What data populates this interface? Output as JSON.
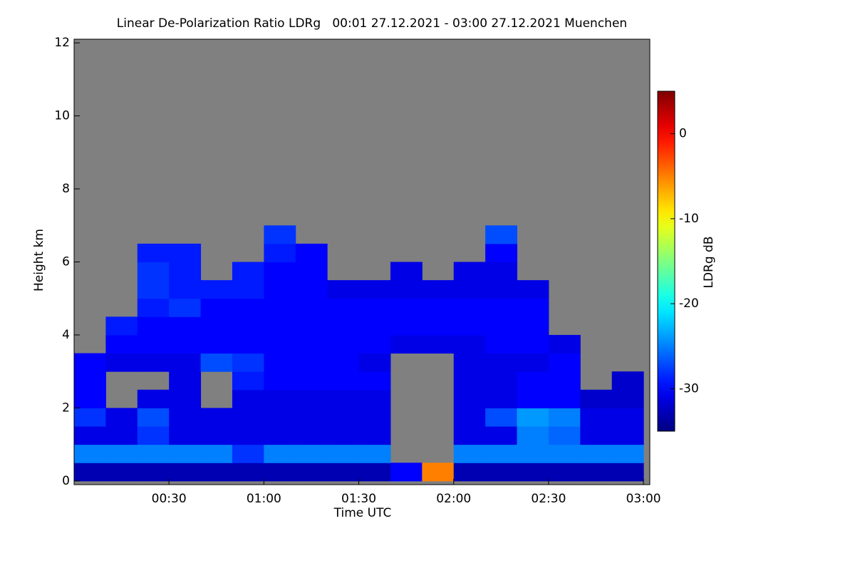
{
  "chart_data": {
    "type": "heatmap",
    "title": "Linear De-Polarization Ratio LDRg   00:01 27.12.2021 - 03:00 27.12.2021 Muenchen",
    "xlabel": "Time UTC",
    "ylabel": "Height km",
    "colorbar_label": "LDRg dB",
    "x": [
      5,
      15,
      25,
      35,
      45,
      55,
      65,
      75,
      85,
      95,
      105,
      115,
      125,
      135,
      145,
      155,
      165,
      175
    ],
    "y": [
      0.25,
      0.75,
      1.25,
      1.75,
      2.25,
      2.75,
      3.25,
      3.75,
      4.25,
      4.75,
      5.25,
      5.75,
      6.25,
      6.75
    ],
    "values": [
      [
        -33,
        -33,
        -33,
        -33,
        -33,
        -33,
        -33,
        -33,
        -33,
        -33,
        -30,
        -5,
        -33,
        -33,
        -33,
        -33,
        -33,
        -33
      ],
      [
        -25,
        -25,
        -25,
        -25,
        -25,
        -28,
        -25,
        -25,
        -25,
        -25,
        null,
        null,
        -25,
        -25,
        -25,
        -25,
        -25,
        -25
      ],
      [
        -31,
        -31,
        -28,
        -31,
        -31,
        -31,
        -31,
        -31,
        -31,
        -31,
        null,
        null,
        -31,
        -31,
        -25,
        -26,
        -31,
        -31
      ],
      [
        -28,
        -31,
        -27,
        -31,
        -31,
        -31,
        -31,
        -31,
        -31,
        -31,
        null,
        null,
        -31,
        -27,
        -24,
        -25,
        -31,
        -31
      ],
      [
        -30,
        null,
        -31,
        -31,
        null,
        -31,
        -31,
        -31,
        -31,
        -31,
        null,
        null,
        -31,
        -31,
        -30,
        -30,
        -32,
        -32
      ],
      [
        -30,
        null,
        null,
        -31,
        null,
        -29,
        -30,
        -30,
        -30,
        -30,
        null,
        null,
        -31,
        -31,
        -30,
        -30,
        null,
        -32
      ],
      [
        -30,
        -31,
        -31,
        -31,
        -27,
        -28,
        -30,
        -30,
        -30,
        -31,
        null,
        null,
        -31,
        -31,
        -31,
        -30,
        null,
        null
      ],
      [
        null,
        -30,
        -30,
        -30,
        -30,
        -30,
        -30,
        -30,
        -30,
        -30,
        -31,
        -31,
        -31,
        -30,
        -30,
        -31,
        null,
        null
      ],
      [
        null,
        -29,
        -30,
        -30,
        -30,
        -30,
        -30,
        -30,
        -30,
        -30,
        -30,
        -30,
        -30,
        -30,
        -30,
        null,
        null,
        null
      ],
      [
        null,
        null,
        -29,
        -28,
        -30,
        -30,
        -30,
        -30,
        -30,
        -30,
        -30,
        -30,
        -30,
        -30,
        -30,
        null,
        null,
        null
      ],
      [
        null,
        null,
        -28,
        -29,
        -29,
        -29,
        -30,
        -30,
        -31,
        -31,
        -31,
        -31,
        -31,
        -31,
        -31,
        null,
        null,
        null
      ],
      [
        null,
        null,
        -28,
        -29,
        null,
        -29,
        -30,
        -30,
        null,
        null,
        -31,
        null,
        -31,
        -31,
        null,
        null,
        null,
        null
      ],
      [
        null,
        null,
        -29,
        -29,
        null,
        null,
        -29,
        -30,
        null,
        null,
        null,
        null,
        null,
        -30,
        null,
        null,
        null,
        null
      ],
      [
        null,
        null,
        null,
        null,
        null,
        null,
        -28,
        null,
        null,
        null,
        null,
        null,
        null,
        -27,
        null,
        null,
        null,
        null
      ]
    ],
    "xlim": [
      0,
      182
    ],
    "ylim": [
      -0.1,
      12.1
    ],
    "zlim": [
      -35,
      5
    ],
    "xticks": [
      {
        "value": 30,
        "label": "00:30"
      },
      {
        "value": 60,
        "label": "01:00"
      },
      {
        "value": 90,
        "label": "01:30"
      },
      {
        "value": 120,
        "label": "02:00"
      },
      {
        "value": 150,
        "label": "02:30"
      },
      {
        "value": 180,
        "label": "03:00"
      }
    ],
    "yticks": [
      0,
      2,
      4,
      6,
      8,
      10,
      12
    ],
    "zticks": [
      0,
      -10,
      -20,
      -30
    ],
    "colormap": "jet",
    "background": "#808080"
  }
}
